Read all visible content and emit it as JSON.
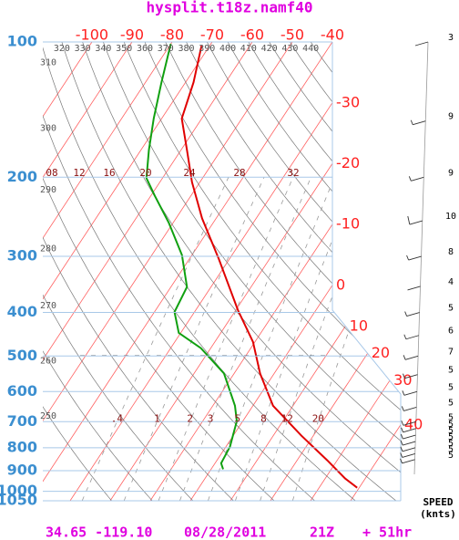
{
  "chart_data": {
    "type": "skewt",
    "title": "hysplit.t18z.namf40",
    "footer": {
      "location": "34.65 -119.10",
      "date": "08/28/2011",
      "time": "21Z",
      "forecast": "+ 51hr"
    },
    "yscale": "log",
    "ylim": [
      1050,
      100
    ],
    "yticks": [
      100,
      200,
      300,
      400,
      500,
      600,
      700,
      800,
      900,
      1000,
      1050
    ],
    "isotherms": [
      -100,
      -90,
      -80,
      -70,
      -60,
      -50,
      -40,
      -30,
      -20,
      -10,
      0,
      10,
      20,
      30,
      40
    ],
    "dry_adiabats": [
      250,
      260,
      270,
      280,
      290,
      300,
      310,
      320,
      330,
      340,
      350,
      360,
      370,
      380,
      390,
      400,
      410,
      420,
      430,
      440
    ],
    "moist_adiabat_labels": [
      "08",
      "12",
      "16",
      "20",
      "24",
      "28",
      "32"
    ],
    "mixing_ratios": [
      {
        "value": 0.4,
        "label": ".4"
      },
      1,
      2,
      3,
      5,
      8,
      12,
      20
    ],
    "series": [
      {
        "color": "#e00000",
        "pressure": [
          102,
          123,
          148,
          174,
          205,
          247,
          305,
          395,
          465,
          547,
          645,
          752,
          853,
          937,
          982
        ],
        "values": [
          -72,
          -68,
          -65,
          -58.5,
          -52,
          -43.5,
          -32.5,
          -19.5,
          -10.5,
          -3.5,
          5,
          17,
          27.5,
          35,
          39.5
        ]
      },
      {
        "color": "#10a010",
        "pressure": [
          101,
          123,
          148,
          174,
          201,
          220,
          253,
          298,
          351,
          399,
          444,
          480,
          547,
          645,
          698,
          796,
          866,
          893
        ],
        "values": [
          -80,
          -76,
          -72,
          -68,
          -64,
          -59,
          -51,
          -42.5,
          -36,
          -35,
          -30.5,
          -22.5,
          -12.5,
          -4.5,
          -1.5,
          1,
          1.5,
          3
        ]
      }
    ],
    "wind": {
      "title": "SPEED",
      "unit": "(knts)",
      "pressure": [
        100,
        150,
        200,
        250,
        300,
        350,
        400,
        450,
        500,
        550,
        600,
        650,
        700,
        725,
        750,
        775,
        800,
        825,
        850
      ],
      "values": [
        3,
        9,
        9,
        10,
        8,
        4,
        5,
        6,
        7,
        5,
        5,
        5,
        5,
        5,
        5,
        5,
        5,
        5,
        5
      ]
    }
  }
}
